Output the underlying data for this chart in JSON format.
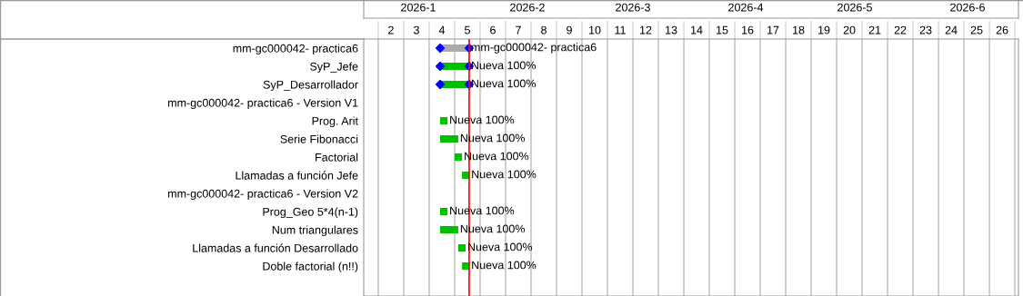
{
  "chart_data": {
    "type": "bar",
    "orientation": "horizontal",
    "grid": "x",
    "categories": [
      "mm-gc000042- practica6",
      "SyP_Jefe",
      "SyP_Desarrollador",
      "mm-gc000042- practica6 - Version V1",
      "Prog. Arit",
      "Serie Fibonacci",
      "Factorial",
      "Llamadas a función Jefe",
      "mm-gc000042- practica6 - Version V2",
      "Prog_Geo 5*4(n-1)",
      "Num triangulares",
      "Llamadas a función Desarrollado",
      "Doble factorial (n!!)"
    ],
    "xlim": [
      0.93,
      26.64
    ],
    "xticks": [
      {
        "value": 1.5,
        "label": null
      },
      2,
      {
        "value": 2.5,
        "label": null
      },
      3,
      {
        "value": 3.5,
        "label": null
      },
      4,
      {
        "value": 4.5,
        "label": null
      },
      5,
      {
        "value": 5.5,
        "label": null
      },
      6,
      {
        "value": 6.5,
        "label": null
      },
      7,
      {
        "value": 7.5,
        "label": null
      },
      8,
      {
        "value": 8.5,
        "label": null
      },
      9,
      {
        "value": 9.5,
        "label": null
      },
      10,
      {
        "value": 10.5,
        "label": null
      },
      11,
      {
        "value": 11.5,
        "label": null
      },
      12,
      {
        "value": 12.5,
        "label": null
      },
      13,
      {
        "value": 13.5,
        "label": null
      },
      14,
      {
        "value": 14.5,
        "label": null
      },
      15,
      {
        "value": 15.5,
        "label": null
      },
      16,
      {
        "value": 16.5,
        "label": null
      },
      17,
      {
        "value": 17.5,
        "label": null
      },
      18,
      {
        "value": 18.5,
        "label": null
      },
      19,
      {
        "value": 19.5,
        "label": null
      },
      20,
      {
        "value": 20.5,
        "label": null
      },
      21,
      {
        "value": 21.5,
        "label": null
      },
      22,
      {
        "value": 22.5,
        "label": null
      },
      23,
      {
        "value": 23.5,
        "label": null
      },
      24,
      {
        "value": 24.5,
        "label": null
      },
      25,
      {
        "value": 25.5,
        "label": null
      },
      26,
      {
        "value": 26.5,
        "label": null
      }
    ],
    "x2lim": [
      "2026-01-01",
      "2026-06-30"
    ],
    "x2ticks": [
      {
        "value": "2026-01-16",
        "label": "2026-1"
      },
      {
        "value": "2026-02-15",
        "label": "2026-2"
      },
      {
        "value": "2026-03-16",
        "label": "2026-3"
      },
      {
        "value": "2026-04-16",
        "label": "2026-4"
      },
      {
        "value": "2026-05-16",
        "label": "2026-5"
      },
      {
        "value": "2026-06-16",
        "label": "2026-6"
      }
    ],
    "series": [
      {
        "base": [
          3.93,
          3.93,
          3.93,
          null,
          3.93,
          3.93,
          4.5,
          4.79,
          null,
          3.93,
          3.93,
          4.64,
          4.79
        ],
        "values": [
          1.14,
          1.14,
          1.14,
          null,
          0.29,
          0.71,
          0.29,
          0.29,
          null,
          0.29,
          0.71,
          0.29,
          0.29
        ],
        "colors": [
          "#aaaaaa",
          "#00c000",
          "#00c000",
          null,
          "#00c000",
          "#00c000",
          "#00c000",
          "#00c000",
          null,
          "#00c000",
          "#00c000",
          "#00c000",
          "#00c000"
        ],
        "value_labels": [
          "mm-gc000042- practica6",
          "Nueva 100%",
          "Nueva 100%",
          null,
          "Nueva 100%",
          "Nueva 100%",
          "Nueva 100%",
          "Nueva 100%",
          null,
          "Nueva 100%",
          "Nueva 100%",
          "Nueva 100%",
          "Nueva 100%"
        ]
      },
      {
        "type": "scatter",
        "marker": "diamond",
        "color": "#0000ff",
        "values": [
          3.93,
          3.93,
          3.93,
          null,
          null,
          null,
          null,
          null,
          null,
          null,
          null,
          null,
          null
        ]
      },
      {
        "type": "scatter",
        "marker": "diamond",
        "color": "#0000ff",
        "values": [
          5.07,
          5.07,
          5.07,
          null,
          null,
          null,
          null,
          null,
          null,
          null,
          null,
          null,
          null
        ]
      }
    ],
    "ref_lines": [
      {
        "axis": "x",
        "value": 5.07,
        "color": "#ff0000"
      }
    ]
  }
}
